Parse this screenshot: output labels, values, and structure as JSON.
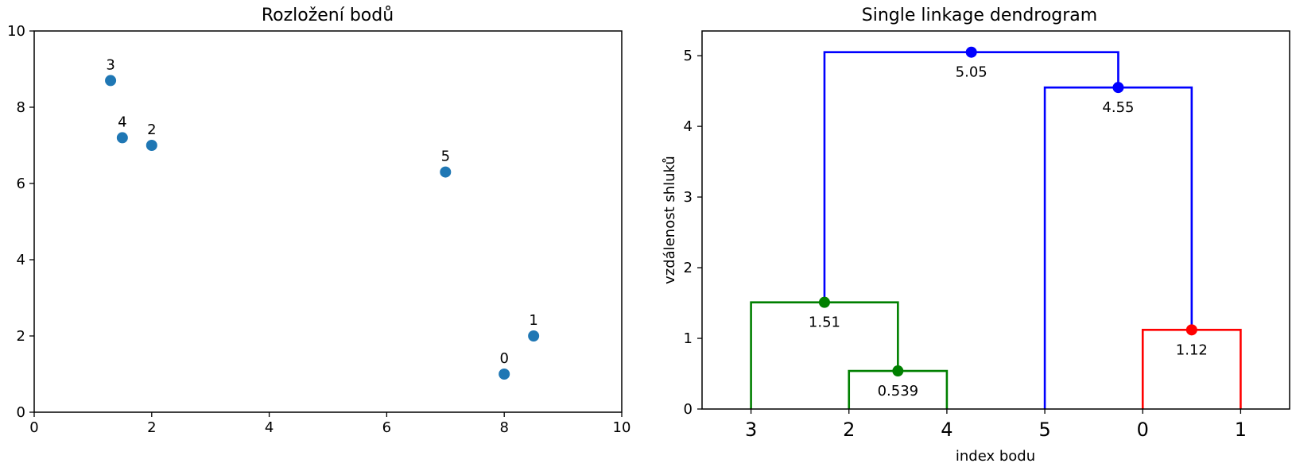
{
  "chart_data": [
    {
      "type": "scatter",
      "title": "Rozložení bodů",
      "xlabel": "",
      "ylabel": "",
      "xlim": [
        0,
        10
      ],
      "ylim": [
        0,
        10
      ],
      "xticks": [
        "0",
        "2",
        "4",
        "6",
        "8",
        "10"
      ],
      "yticks": [
        "0",
        "2",
        "4",
        "6",
        "8",
        "10"
      ],
      "color": "#1f77b4",
      "points": [
        {
          "label": "0",
          "x": 8.0,
          "y": 1.0
        },
        {
          "label": "1",
          "x": 8.5,
          "y": 2.0
        },
        {
          "label": "2",
          "x": 2.0,
          "y": 7.0
        },
        {
          "label": "3",
          "x": 1.3,
          "y": 8.7
        },
        {
          "label": "4",
          "x": 1.5,
          "y": 7.2
        },
        {
          "label": "5",
          "x": 7.0,
          "y": 6.3
        }
      ]
    },
    {
      "type": "dendrogram",
      "title": "Single linkage dendrogram",
      "xlabel": "index bodu",
      "ylabel": "vzdálenost shluků",
      "ylim": [
        0,
        5.35
      ],
      "yticks": [
        "0",
        "1",
        "2",
        "3",
        "4",
        "5"
      ],
      "leaves": [
        "3",
        "2",
        "4",
        "5",
        "0",
        "1"
      ],
      "merges": [
        {
          "id": "c1",
          "left": "leaf:1",
          "right": "leaf:2",
          "height": 0.539,
          "label": "0.539",
          "color": "#008000"
        },
        {
          "id": "c2",
          "left": "leaf:4",
          "right": "leaf:5",
          "height": 1.12,
          "label": "1.12",
          "color": "#ff0000"
        },
        {
          "id": "c3",
          "left": "leaf:0",
          "right": "c1",
          "height": 1.51,
          "label": "1.51",
          "color": "#008000"
        },
        {
          "id": "c4",
          "left": "leaf:3",
          "right": "c2",
          "height": 4.55,
          "label": "4.55",
          "color": "#0000ff"
        },
        {
          "id": "c5",
          "left": "c3",
          "right": "c4",
          "height": 5.05,
          "label": "5.05",
          "color": "#0000ff"
        }
      ]
    }
  ]
}
